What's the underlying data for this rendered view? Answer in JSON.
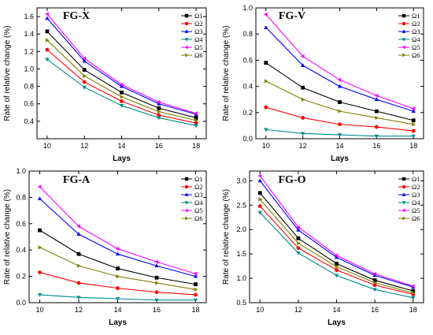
{
  "chart_data": [
    {
      "type": "line",
      "title": "FG-X",
      "xlabel": "Lays",
      "ylabel": "Rate of relative change (%)",
      "x": [
        10,
        12,
        14,
        16,
        18
      ],
      "xticks": [
        "10",
        "12",
        "14",
        "16",
        "18"
      ],
      "ylim": [
        0.2,
        1.7
      ],
      "yticks": [
        "0.4",
        "0.6",
        "0.8",
        "1.0",
        "1.2",
        "1.4",
        "1.6"
      ],
      "grid": false,
      "legend_position": "top-right",
      "series": [
        {
          "name": "Ω1",
          "values": [
            1.43,
            0.99,
            0.73,
            0.55,
            0.44
          ]
        },
        {
          "name": "Ω2",
          "values": [
            1.22,
            0.85,
            0.63,
            0.47,
            0.38
          ]
        },
        {
          "name": "Ω3",
          "values": [
            1.58,
            1.09,
            0.8,
            0.6,
            0.48
          ]
        },
        {
          "name": "Ω4",
          "values": [
            1.11,
            0.79,
            0.58,
            0.44,
            0.35
          ]
        },
        {
          "name": "Ω5",
          "values": [
            1.63,
            1.12,
            0.82,
            0.62,
            0.49
          ]
        },
        {
          "name": "Ω6",
          "values": [
            1.33,
            0.92,
            0.68,
            0.51,
            0.41
          ]
        }
      ]
    },
    {
      "type": "line",
      "title": "FG-V",
      "xlabel": "Lays",
      "ylabel": "Rate of relative change (%)",
      "x": [
        10,
        12,
        14,
        16,
        18
      ],
      "xticks": [
        "10",
        "12",
        "14",
        "16",
        "18"
      ],
      "ylim": [
        0.0,
        1.0
      ],
      "yticks": [
        "0.0",
        "0.2",
        "0.4",
        "0.6",
        "0.8",
        "1.0"
      ],
      "grid": false,
      "legend_position": "top-right",
      "series": [
        {
          "name": "Ω1",
          "values": [
            0.58,
            0.39,
            0.28,
            0.21,
            0.14
          ]
        },
        {
          "name": "Ω2",
          "values": [
            0.24,
            0.16,
            0.11,
            0.09,
            0.06
          ]
        },
        {
          "name": "Ω3",
          "values": [
            0.85,
            0.56,
            0.4,
            0.3,
            0.21
          ]
        },
        {
          "name": "Ω4",
          "values": [
            0.07,
            0.04,
            0.03,
            0.02,
            0.02
          ]
        },
        {
          "name": "Ω5",
          "values": [
            0.95,
            0.63,
            0.45,
            0.33,
            0.23
          ]
        },
        {
          "name": "Ω6",
          "values": [
            0.44,
            0.3,
            0.21,
            0.16,
            0.11
          ]
        }
      ]
    },
    {
      "type": "line",
      "title": "FG-A",
      "xlabel": "Lays",
      "ylabel": "Rate of relative change (%)",
      "x": [
        10,
        12,
        14,
        16,
        18
      ],
      "xticks": [
        "10",
        "12",
        "14",
        "16",
        "18"
      ],
      "ylim": [
        0.0,
        1.0
      ],
      "yticks": [
        "0.0",
        "0.2",
        "0.4",
        "0.6",
        "0.8",
        "1.0"
      ],
      "grid": false,
      "legend_position": "top-right",
      "series": [
        {
          "name": "Ω1",
          "values": [
            0.55,
            0.37,
            0.26,
            0.19,
            0.14
          ]
        },
        {
          "name": "Ω2",
          "values": [
            0.23,
            0.15,
            0.11,
            0.08,
            0.06
          ]
        },
        {
          "name": "Ω3",
          "values": [
            0.79,
            0.52,
            0.37,
            0.28,
            0.2
          ]
        },
        {
          "name": "Ω4",
          "values": [
            0.06,
            0.04,
            0.03,
            0.02,
            0.02
          ]
        },
        {
          "name": "Ω5",
          "values": [
            0.88,
            0.58,
            0.41,
            0.31,
            0.22
          ]
        },
        {
          "name": "Ω6",
          "values": [
            0.42,
            0.28,
            0.2,
            0.15,
            0.1
          ]
        }
      ]
    },
    {
      "type": "line",
      "title": "FG-O",
      "xlabel": "Lays",
      "ylabel": "Rate of relative change (%)",
      "x": [
        10,
        12,
        14,
        16,
        18
      ],
      "xticks": [
        "10",
        "12",
        "14",
        "16",
        "18"
      ],
      "ylim": [
        0.5,
        3.2
      ],
      "yticks": [
        "0.5",
        "1.0",
        "1.5",
        "2.0",
        "2.5",
        "3.0"
      ],
      "grid": false,
      "legend_position": "top-right",
      "series": [
        {
          "name": "Ω1",
          "values": [
            2.75,
            1.82,
            1.3,
            0.96,
            0.74
          ]
        },
        {
          "name": "Ω2",
          "values": [
            2.48,
            1.62,
            1.17,
            0.86,
            0.67
          ]
        },
        {
          "name": "Ω3",
          "values": [
            3.0,
            1.99,
            1.43,
            1.06,
            0.82
          ]
        },
        {
          "name": "Ω4",
          "values": [
            2.35,
            1.52,
            1.06,
            0.77,
            0.6
          ]
        },
        {
          "name": "Ω5",
          "values": [
            3.1,
            2.05,
            1.47,
            1.09,
            0.84
          ]
        },
        {
          "name": "Ω6",
          "values": [
            2.62,
            1.72,
            1.24,
            0.91,
            0.7
          ]
        }
      ]
    }
  ],
  "style": {
    "series_colors": [
      "#000000",
      "#ff0000",
      "#0000ff",
      "#008b8b",
      "#ff00ff",
      "#808000"
    ],
    "series_markers": [
      "square",
      "circle",
      "triangle-up",
      "triangle-down",
      "triangle-left",
      "triangle-right"
    ]
  }
}
